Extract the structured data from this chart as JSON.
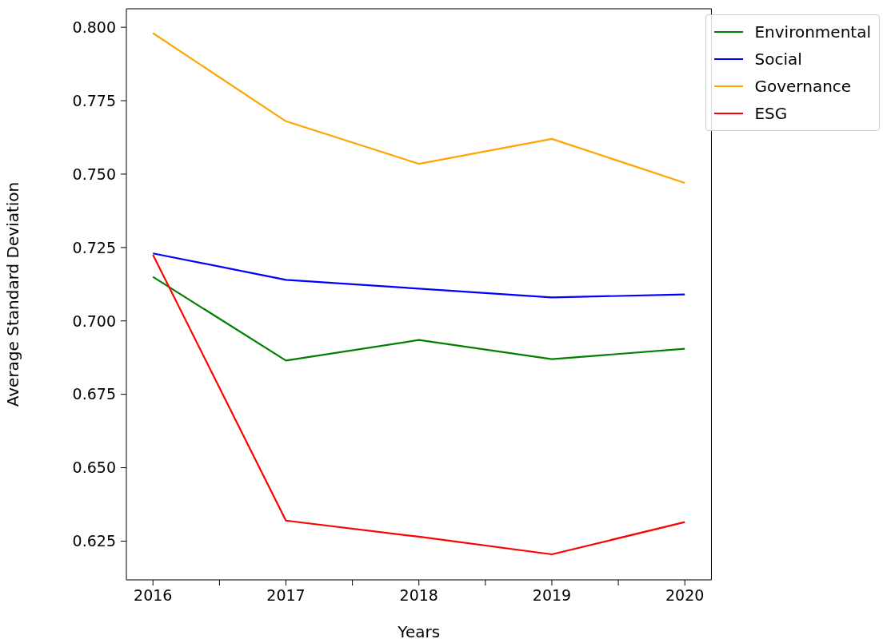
{
  "chart_data": {
    "type": "line",
    "xlabel": "Years",
    "ylabel": "Average Standard Deviation",
    "x": [
      2016,
      2017,
      2018,
      2019,
      2020
    ],
    "series": [
      {
        "name": "Environmental",
        "color": "#008000",
        "values": [
          0.715,
          0.6865,
          0.6935,
          0.687,
          0.6905
        ]
      },
      {
        "name": "Social",
        "color": "#0000ff",
        "values": [
          0.723,
          0.714,
          0.711,
          0.708,
          0.709
        ]
      },
      {
        "name": "Governance",
        "color": "#ffa500",
        "values": [
          0.798,
          0.768,
          0.7535,
          0.762,
          0.747
        ]
      },
      {
        "name": "ESG",
        "color": "#ff0000",
        "values": [
          0.7225,
          0.632,
          0.6265,
          0.6205,
          0.6315
        ]
      }
    ],
    "xlim": [
      2015.8,
      2020.2
    ],
    "xticks": [
      2016,
      {
        "value": 2016.5,
        "label": null
      },
      2017,
      {
        "value": 2017.5,
        "label": null
      },
      2018,
      {
        "value": 2018.5,
        "label": null
      },
      2019,
      {
        "value": 2019.5,
        "label": null
      },
      2020
    ],
    "ylim": [
      0.6118,
      0.8063
    ],
    "yticks": [
      {
        "value": 0.625,
        "label": "0.625"
      },
      {
        "value": 0.65,
        "label": "0.650"
      },
      {
        "value": 0.675,
        "label": "0.675"
      },
      {
        "value": 0.7,
        "label": "0.700"
      },
      {
        "value": 0.725,
        "label": "0.725"
      },
      {
        "value": 0.75,
        "label": "0.750"
      },
      {
        "value": 0.775,
        "label": "0.775"
      },
      {
        "value": 0.8,
        "label": "0.800"
      }
    ],
    "grid": false,
    "legend": "top right",
    "marker": "none",
    "line_style": "solid"
  }
}
